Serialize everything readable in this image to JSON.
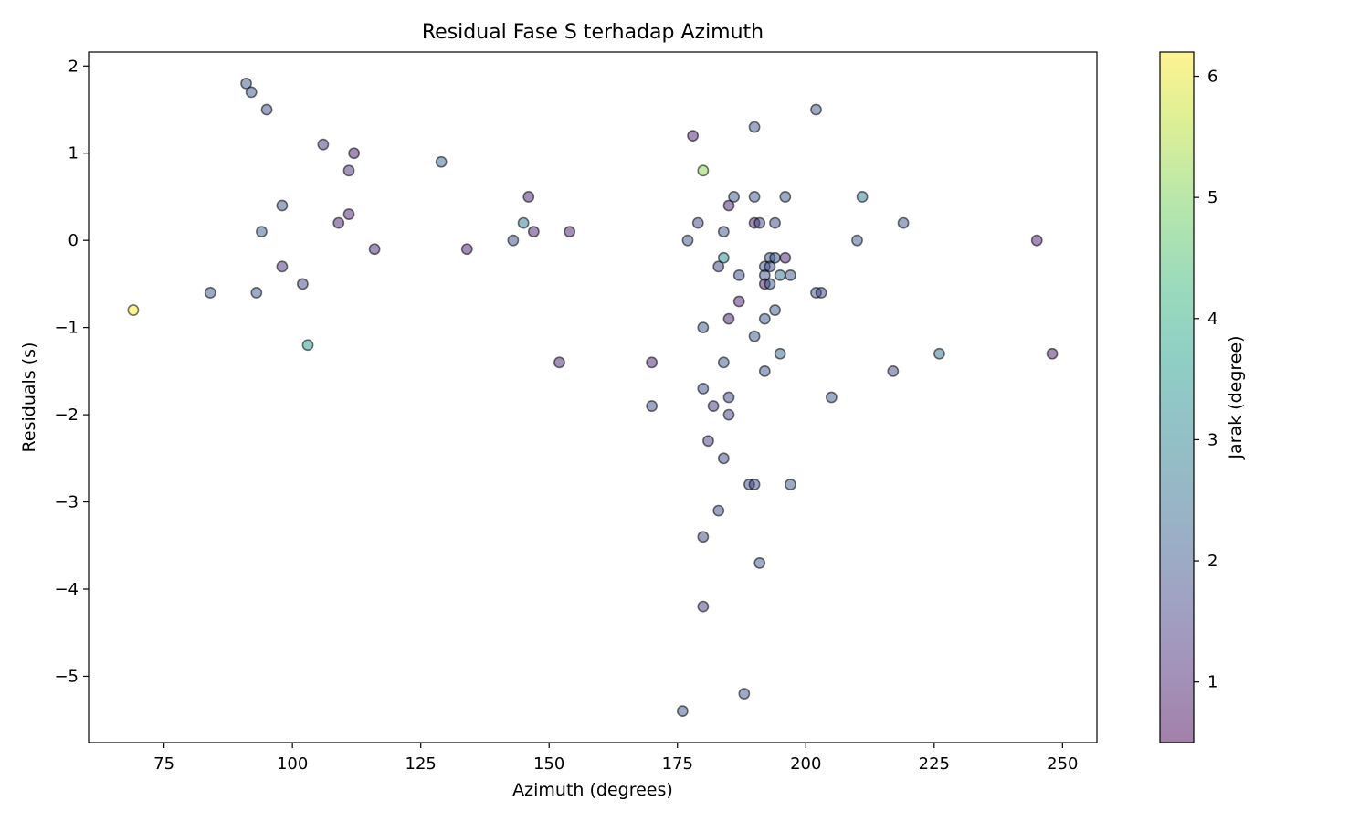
{
  "chart_data": {
    "type": "scatter",
    "title": "Residual Fase S terhadap Azimuth",
    "xlabel": "Azimuth (degrees)",
    "ylabel": "Residuals (s)",
    "xlim": [
      60.3,
      256.7
    ],
    "ylim": [
      -5.76,
      2.16
    ],
    "xticks": [
      75,
      100,
      125,
      150,
      175,
      200,
      225,
      250
    ],
    "yticks": [
      -5,
      -4,
      -3,
      -2,
      -1,
      0,
      1,
      2
    ],
    "grid": false,
    "colormap": "viridis",
    "marker_alpha": 0.5,
    "colorbar": {
      "label": "Jarak (degree)",
      "range": [
        0.5,
        6.2
      ],
      "ticks": [
        1,
        2,
        3,
        4,
        5,
        6
      ]
    },
    "points": [
      {
        "x": 69,
        "y": -0.8,
        "c": 6.2
      },
      {
        "x": 84,
        "y": -0.6,
        "c": 2.0
      },
      {
        "x": 91,
        "y": 1.8,
        "c": 2.0
      },
      {
        "x": 92,
        "y": 1.7,
        "c": 2.0
      },
      {
        "x": 93,
        "y": -0.6,
        "c": 2.0
      },
      {
        "x": 94,
        "y": 0.1,
        "c": 2.2
      },
      {
        "x": 95,
        "y": 1.5,
        "c": 1.8
      },
      {
        "x": 98,
        "y": 0.4,
        "c": 2.0
      },
      {
        "x": 98,
        "y": -0.3,
        "c": 1.2
      },
      {
        "x": 102,
        "y": -0.5,
        "c": 1.6
      },
      {
        "x": 103,
        "y": -1.2,
        "c": 3.5
      },
      {
        "x": 106,
        "y": 1.1,
        "c": 1.3
      },
      {
        "x": 109,
        "y": 0.2,
        "c": 1.0
      },
      {
        "x": 111,
        "y": 0.8,
        "c": 1.2
      },
      {
        "x": 111,
        "y": 0.3,
        "c": 1.0
      },
      {
        "x": 112,
        "y": 1.0,
        "c": 0.9
      },
      {
        "x": 116,
        "y": -0.1,
        "c": 1.1
      },
      {
        "x": 129,
        "y": 0.9,
        "c": 2.3
      },
      {
        "x": 134,
        "y": -0.1,
        "c": 0.9
      },
      {
        "x": 143,
        "y": 0.0,
        "c": 1.8
      },
      {
        "x": 145,
        "y": 0.2,
        "c": 2.8
      },
      {
        "x": 146,
        "y": 0.5,
        "c": 1.0
      },
      {
        "x": 147,
        "y": 0.1,
        "c": 1.0
      },
      {
        "x": 152,
        "y": -1.4,
        "c": 1.0
      },
      {
        "x": 154,
        "y": 0.1,
        "c": 0.9
      },
      {
        "x": 170,
        "y": -1.4,
        "c": 1.0
      },
      {
        "x": 170,
        "y": -1.9,
        "c": 1.8
      },
      {
        "x": 176,
        "y": -5.4,
        "c": 2.0
      },
      {
        "x": 177,
        "y": 0.0,
        "c": 2.0
      },
      {
        "x": 178,
        "y": 1.2,
        "c": 1.0
      },
      {
        "x": 179,
        "y": 0.2,
        "c": 1.6
      },
      {
        "x": 180,
        "y": 0.8,
        "c": 5.2
      },
      {
        "x": 180,
        "y": -1.0,
        "c": 2.0
      },
      {
        "x": 180,
        "y": -1.7,
        "c": 1.8
      },
      {
        "x": 180,
        "y": -3.4,
        "c": 1.6
      },
      {
        "x": 180,
        "y": -4.2,
        "c": 1.5
      },
      {
        "x": 181,
        "y": -2.3,
        "c": 1.5
      },
      {
        "x": 182,
        "y": -1.9,
        "c": 1.4
      },
      {
        "x": 183,
        "y": -0.3,
        "c": 1.6
      },
      {
        "x": 183,
        "y": -3.1,
        "c": 1.7
      },
      {
        "x": 184,
        "y": 0.1,
        "c": 2.0
      },
      {
        "x": 184,
        "y": -0.2,
        "c": 3.2
      },
      {
        "x": 184,
        "y": -1.4,
        "c": 2.0
      },
      {
        "x": 184,
        "y": -2.5,
        "c": 1.7
      },
      {
        "x": 185,
        "y": 0.4,
        "c": 1.0
      },
      {
        "x": 185,
        "y": -0.9,
        "c": 1.0
      },
      {
        "x": 185,
        "y": -1.8,
        "c": 1.8
      },
      {
        "x": 185,
        "y": -2.0,
        "c": 1.6
      },
      {
        "x": 186,
        "y": 0.5,
        "c": 2.0
      },
      {
        "x": 187,
        "y": -0.4,
        "c": 1.8
      },
      {
        "x": 187,
        "y": -0.7,
        "c": 1.0
      },
      {
        "x": 188,
        "y": -5.2,
        "c": 2.0
      },
      {
        "x": 189,
        "y": -2.8,
        "c": 1.8
      },
      {
        "x": 190,
        "y": 1.3,
        "c": 2.0
      },
      {
        "x": 190,
        "y": 0.5,
        "c": 2.0
      },
      {
        "x": 190,
        "y": 0.2,
        "c": 1.0
      },
      {
        "x": 190,
        "y": -1.1,
        "c": 2.0
      },
      {
        "x": 190,
        "y": -2.8,
        "c": 1.8
      },
      {
        "x": 191,
        "y": 0.2,
        "c": 1.7
      },
      {
        "x": 191,
        "y": -3.7,
        "c": 2.0
      },
      {
        "x": 192,
        "y": -0.3,
        "c": 2.0
      },
      {
        "x": 192,
        "y": -0.4,
        "c": 2.0
      },
      {
        "x": 192,
        "y": -0.5,
        "c": 0.9
      },
      {
        "x": 192,
        "y": -0.9,
        "c": 2.0
      },
      {
        "x": 192,
        "y": -1.5,
        "c": 2.0
      },
      {
        "x": 193,
        "y": -0.2,
        "c": 2.0
      },
      {
        "x": 193,
        "y": -0.3,
        "c": 1.8
      },
      {
        "x": 193,
        "y": -0.5,
        "c": 2.0
      },
      {
        "x": 194,
        "y": 0.2,
        "c": 1.6
      },
      {
        "x": 194,
        "y": -0.2,
        "c": 2.0
      },
      {
        "x": 194,
        "y": -0.8,
        "c": 2.0
      },
      {
        "x": 195,
        "y": -0.4,
        "c": 2.6
      },
      {
        "x": 195,
        "y": -1.3,
        "c": 2.4
      },
      {
        "x": 196,
        "y": 0.5,
        "c": 2.0
      },
      {
        "x": 196,
        "y": -0.2,
        "c": 1.0
      },
      {
        "x": 197,
        "y": -0.4,
        "c": 2.0
      },
      {
        "x": 197,
        "y": -2.8,
        "c": 2.0
      },
      {
        "x": 202,
        "y": 1.5,
        "c": 2.0
      },
      {
        "x": 202,
        "y": -0.6,
        "c": 2.0
      },
      {
        "x": 203,
        "y": -0.6,
        "c": 1.6
      },
      {
        "x": 205,
        "y": -1.8,
        "c": 2.0
      },
      {
        "x": 210,
        "y": 0.0,
        "c": 2.0
      },
      {
        "x": 211,
        "y": 0.5,
        "c": 2.7
      },
      {
        "x": 217,
        "y": -1.5,
        "c": 1.7
      },
      {
        "x": 219,
        "y": 0.2,
        "c": 2.0
      },
      {
        "x": 226,
        "y": -1.3,
        "c": 2.6
      },
      {
        "x": 245,
        "y": 0.0,
        "c": 0.9
      },
      {
        "x": 248,
        "y": -1.3,
        "c": 0.9
      }
    ]
  }
}
